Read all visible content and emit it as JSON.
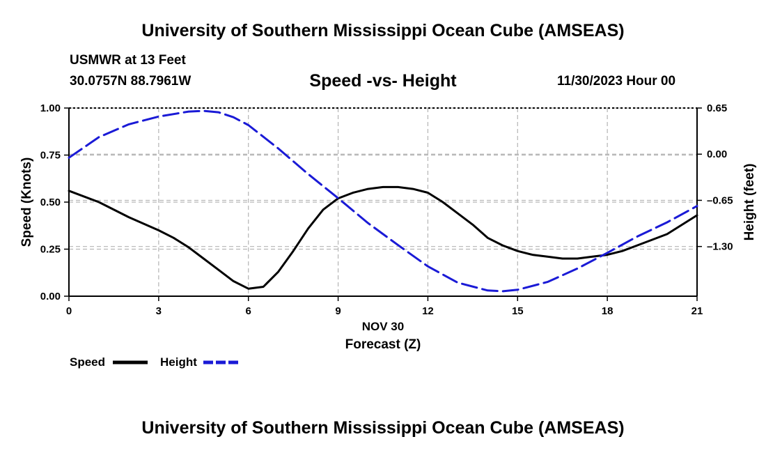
{
  "page": {
    "title_top": "University of Southern Mississippi Ocean Cube (AMSEAS)",
    "title_bottom": "University of Southern Mississippi Ocean Cube (AMSEAS)",
    "station": "USMWR at 13 Feet",
    "coords": "30.0757N  88.7961W",
    "datetime": "11/30/2023 Hour 00"
  },
  "colors": {
    "speed": "#000000",
    "height": "#1a1ad6",
    "grid": "#b4b4b4"
  },
  "chart_data": {
    "type": "line",
    "title": "Speed -vs- Height",
    "xlabel": "Forecast (Z)",
    "x_date_label": "NOV 30",
    "ylabel": "Speed (Knots)",
    "y2label": "Height (feet)",
    "xlim": [
      0,
      21
    ],
    "ylim": [
      0,
      1
    ],
    "y2lim": [
      -2.0,
      0.65
    ],
    "x_ticks": [
      0,
      3,
      6,
      9,
      12,
      15,
      18,
      21
    ],
    "x_tick_labels": [
      "0",
      "3",
      "6",
      "9",
      "12",
      "15",
      "18",
      "21"
    ],
    "y_ticks": [
      0,
      0.25,
      0.5,
      0.75,
      1.0
    ],
    "y_tick_labels": [
      "0.00",
      "0.25",
      "0.50",
      "0.75",
      "1.00"
    ],
    "y2_ticks": [
      0.65,
      0.0,
      -0.65,
      -1.3
    ],
    "y2_tick_labels": [
      "0.65",
      "0.00",
      "–0.65",
      "–1.30"
    ],
    "grid": true,
    "legend": {
      "position": "bottom-left",
      "entries": [
        "Speed",
        "Height"
      ]
    },
    "series": [
      {
        "name": "Speed",
        "axis": "left",
        "style": "solid",
        "x": [
          0,
          1,
          2,
          3,
          3.5,
          4,
          4.5,
          5,
          5.5,
          6,
          6.5,
          7,
          7.5,
          8,
          8.5,
          9,
          9.5,
          10,
          10.5,
          11,
          11.5,
          12,
          12.5,
          13,
          13.5,
          14,
          14.5,
          15,
          15.5,
          16,
          16.5,
          17,
          17.5,
          18,
          18.5,
          19,
          19.5,
          20,
          20.5,
          21
        ],
        "values": [
          0.56,
          0.5,
          0.42,
          0.35,
          0.31,
          0.26,
          0.2,
          0.14,
          0.08,
          0.04,
          0.05,
          0.13,
          0.24,
          0.36,
          0.46,
          0.52,
          0.55,
          0.57,
          0.58,
          0.58,
          0.57,
          0.55,
          0.5,
          0.44,
          0.38,
          0.31,
          0.27,
          0.24,
          0.22,
          0.21,
          0.2,
          0.2,
          0.21,
          0.22,
          0.24,
          0.27,
          0.3,
          0.33,
          0.38,
          0.43
        ]
      },
      {
        "name": "Height",
        "axis": "right",
        "style": "dashed",
        "x": [
          0,
          1,
          2,
          3,
          4,
          4.5,
          5,
          5.5,
          6,
          7,
          8,
          9,
          10,
          11,
          12,
          13,
          14,
          14.5,
          15,
          16,
          17,
          18,
          19,
          20,
          21
        ],
        "values": [
          -0.05,
          0.24,
          0.42,
          0.53,
          0.6,
          0.61,
          0.59,
          0.52,
          0.41,
          0.08,
          -0.28,
          -0.62,
          -0.97,
          -1.28,
          -1.58,
          -1.81,
          -1.92,
          -1.93,
          -1.91,
          -1.8,
          -1.61,
          -1.39,
          -1.16,
          -0.96,
          -0.73
        ]
      }
    ]
  }
}
